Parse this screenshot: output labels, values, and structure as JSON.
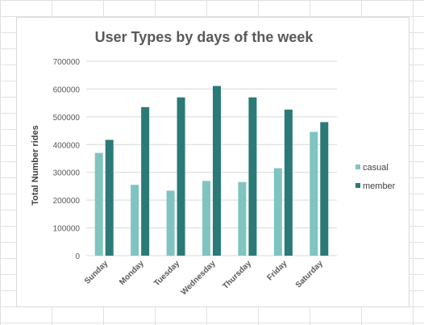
{
  "chart_data": {
    "type": "bar",
    "title": "User Types by days of the week",
    "xlabel": "",
    "ylabel": "Total Number rides",
    "categories": [
      "Sunday",
      "Monday",
      "Tuesday",
      "Wednesday",
      "Thursday",
      "Friday",
      "Saturday"
    ],
    "series": [
      {
        "name": "casual",
        "color": "#7fc4c1",
        "values": [
          370000,
          255000,
          234000,
          269000,
          265000,
          315000,
          446000
        ]
      },
      {
        "name": "member",
        "color": "#2a7a77",
        "values": [
          417000,
          535000,
          570000,
          611000,
          570000,
          526000,
          481000
        ]
      }
    ],
    "ylim": [
      0,
      700000
    ],
    "yticks": [
      "0",
      "100000",
      "200000",
      "300000",
      "400000",
      "500000",
      "600000",
      "700000"
    ],
    "grid": true,
    "legend_position": "right"
  }
}
